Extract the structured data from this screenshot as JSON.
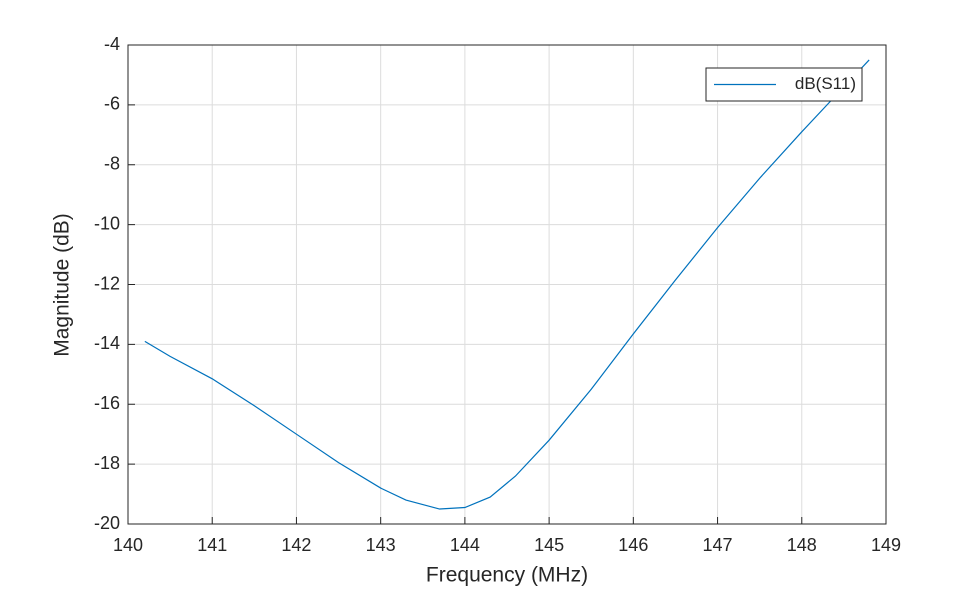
{
  "chart_data": {
    "type": "line",
    "xlabel": "Frequency (MHz)",
    "ylabel": "Magnitude (dB)",
    "x": [
      140.2,
      140.5,
      141,
      141.5,
      142,
      142.5,
      143,
      143.3,
      143.7,
      144,
      144.3,
      144.6,
      145,
      145.5,
      146,
      146.5,
      147,
      147.5,
      148,
      148.4,
      148.8
    ],
    "series": [
      {
        "name": "dB(S11)",
        "color": "#0072bd",
        "values": [
          -13.9,
          -14.4,
          -15.15,
          -16.05,
          -17.0,
          -17.95,
          -18.8,
          -19.2,
          -19.5,
          -19.45,
          -19.1,
          -18.4,
          -17.2,
          -15.5,
          -13.65,
          -11.85,
          -10.1,
          -8.45,
          -6.9,
          -5.7,
          -4.5
        ]
      }
    ],
    "xlim": [
      140,
      149
    ],
    "xticks": [
      140,
      141,
      142,
      143,
      144,
      145,
      146,
      147,
      148,
      149
    ],
    "ylim": [
      -20,
      -4
    ],
    "yticks": [
      -20,
      -18,
      -16,
      -14,
      -12,
      -10,
      -8,
      -6,
      -4
    ],
    "grid": true,
    "legend": "upper right"
  }
}
